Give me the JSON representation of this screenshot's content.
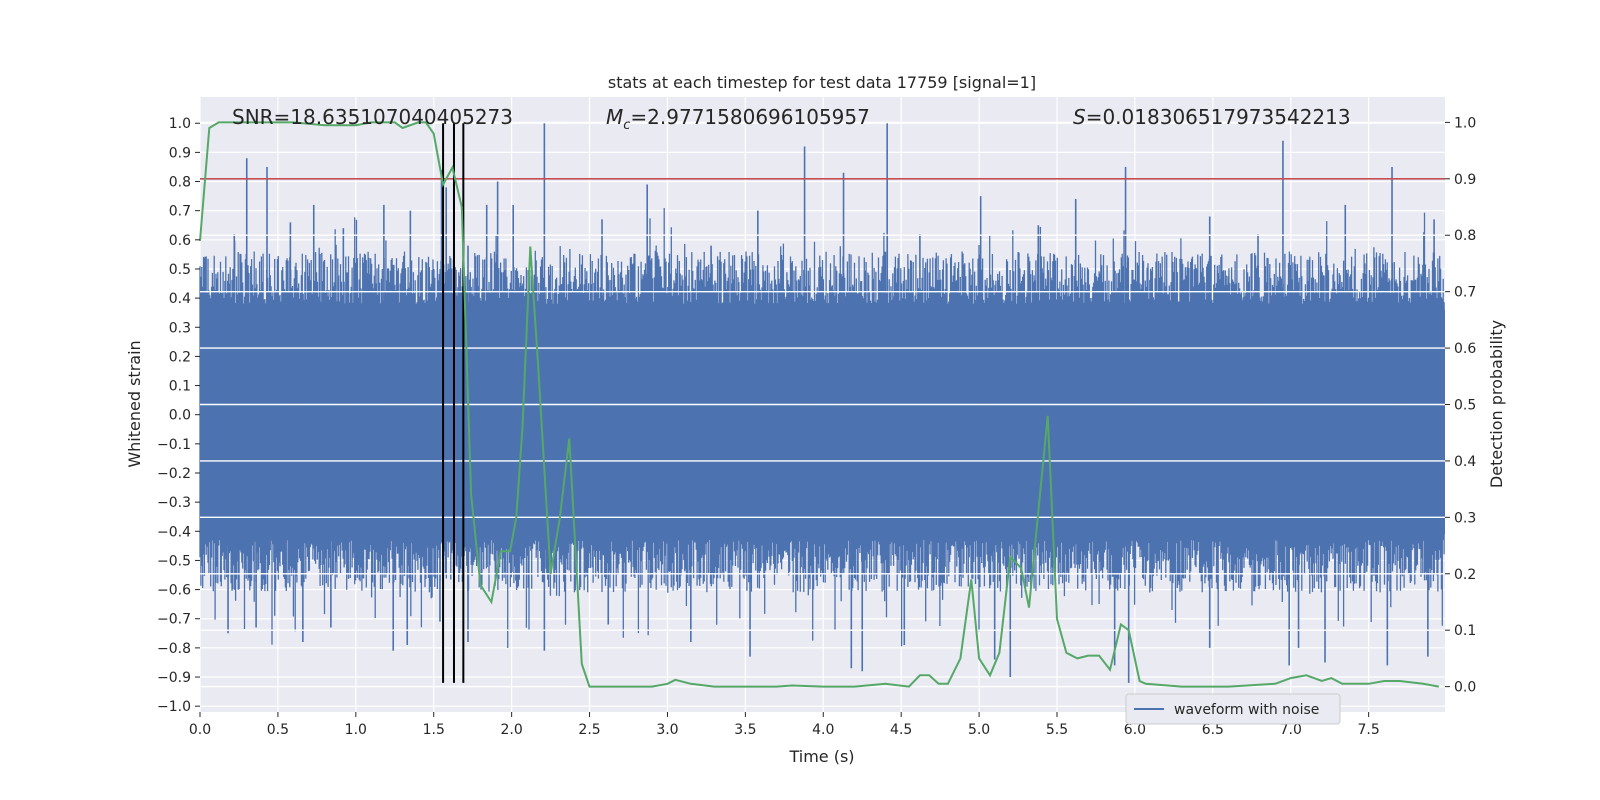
{
  "chart_data": {
    "type": "line",
    "title": "stats at each timestep for test data 17759 [signal=1]",
    "xlabel": "Time (s)",
    "ylabel_left": "Whitened strain",
    "ylabel_right": "Detection probability",
    "xlim": [
      0,
      7.99
    ],
    "ylim_left": [
      -1.02,
      1.09
    ],
    "ylim_right": [
      -0.045,
      1.045
    ],
    "grid": true,
    "x_ticks": [
      "0.0",
      "0.5",
      "1.0",
      "1.5",
      "2.0",
      "2.5",
      "3.0",
      "3.5",
      "4.0",
      "4.5",
      "5.0",
      "5.5",
      "6.0",
      "6.5",
      "7.0",
      "7.5"
    ],
    "y_ticks_left": [
      "-1.0",
      "-0.9",
      "-0.8",
      "-0.7",
      "-0.6",
      "-0.5",
      "-0.4",
      "-0.3",
      "-0.2",
      "-0.1",
      "0.0",
      "0.1",
      "0.2",
      "0.3",
      "0.4",
      "0.5",
      "0.6",
      "0.7",
      "0.8",
      "0.9",
      "1.0"
    ],
    "y_ticks_right": [
      "0.0",
      "0.1",
      "0.2",
      "0.3",
      "0.4",
      "0.5",
      "0.6",
      "0.7",
      "0.8",
      "0.9",
      "1.0"
    ],
    "annotations": {
      "snr": "SNR=18.635107040405273",
      "mc_symbol": "M",
      "mc_sub": "c",
      "mc_value": "=2.9771580696105957",
      "s_symbol": "S",
      "s_value": "=0.018306517973542213"
    },
    "legend": {
      "position": "lower-right",
      "entries": [
        "waveform with noise"
      ]
    },
    "threshold_right": 0.9,
    "vertical_markers": [
      1.56,
      1.63,
      1.69
    ],
    "marker_range_left": [
      -0.92,
      1.0
    ],
    "series": [
      {
        "name": "waveform with noise",
        "color": "#4c72b0",
        "envelope": {
          "base_pos": 0.38,
          "base_neg": -0.43,
          "spikes": [
            [
              0.22,
              0.62
            ],
            [
              0.3,
              0.88
            ],
            [
              0.43,
              0.85
            ],
            [
              0.58,
              0.66
            ],
            [
              0.73,
              0.72
            ],
            [
              0.92,
              0.64
            ],
            [
              1.18,
              0.72
            ],
            [
              1.35,
              0.7
            ],
            [
              1.55,
              0.84
            ],
            [
              1.58,
              0.78
            ],
            [
              1.72,
              0.58
            ],
            [
              1.84,
              0.72
            ],
            [
              1.91,
              0.8
            ],
            [
              2.01,
              0.72
            ],
            [
              2.21,
              1.0
            ],
            [
              2.58,
              0.67
            ],
            [
              2.87,
              0.79
            ],
            [
              3.28,
              0.58
            ],
            [
              3.58,
              0.7
            ],
            [
              3.88,
              0.92
            ],
            [
              4.13,
              0.83
            ],
            [
              4.41,
              1.0
            ],
            [
              4.62,
              0.62
            ],
            [
              5.01,
              0.75
            ],
            [
              5.38,
              0.65
            ],
            [
              5.62,
              0.74
            ],
            [
              5.94,
              0.85
            ],
            [
              6.48,
              0.68
            ],
            [
              6.79,
              0.62
            ],
            [
              6.95,
              0.94
            ],
            [
              7.35,
              0.72
            ],
            [
              7.65,
              0.85
            ],
            [
              7.92,
              0.67
            ],
            [
              0.18,
              -0.75
            ],
            [
              0.36,
              -0.73
            ],
            [
              0.66,
              -0.78
            ],
            [
              0.84,
              -0.73
            ],
            [
              1.24,
              -0.81
            ],
            [
              1.33,
              -0.79
            ],
            [
              1.54,
              -0.71
            ],
            [
              1.72,
              -0.78
            ],
            [
              2.21,
              -0.81
            ],
            [
              2.62,
              -0.72
            ],
            [
              3.15,
              -0.78
            ],
            [
              3.53,
              -0.83
            ],
            [
              4.18,
              -0.87
            ],
            [
              4.25,
              -0.88
            ],
            [
              4.52,
              -0.79
            ],
            [
              5.1,
              -0.84
            ],
            [
              5.2,
              -0.9
            ],
            [
              5.87,
              -0.86
            ],
            [
              5.96,
              -0.92
            ],
            [
              6.48,
              -0.8
            ],
            [
              6.99,
              -0.86
            ],
            [
              7.05,
              -0.8
            ],
            [
              7.22,
              -0.85
            ],
            [
              7.62,
              -0.86
            ],
            [
              7.88,
              -0.83
            ]
          ]
        }
      },
      {
        "name": "detection probability",
        "color": "#55a868",
        "axis": "right",
        "x": [
          0.0,
          0.06,
          0.12,
          0.2,
          0.3,
          0.4,
          0.5,
          0.6,
          0.8,
          1.0,
          1.1,
          1.2,
          1.25,
          1.3,
          1.4,
          1.45,
          1.5,
          1.56,
          1.62,
          1.68,
          1.74,
          1.8,
          1.87,
          1.93,
          1.99,
          2.03,
          2.07,
          2.12,
          2.17,
          2.25,
          2.31,
          2.37,
          2.45,
          2.5,
          2.6,
          2.9,
          3.0,
          3.05,
          3.15,
          3.3,
          3.5,
          3.7,
          3.8,
          4.0,
          4.2,
          4.4,
          4.55,
          4.62,
          4.68,
          4.74,
          4.8,
          4.88,
          4.95,
          5.0,
          5.07,
          5.13,
          5.2,
          5.27,
          5.32,
          5.38,
          5.44,
          5.5,
          5.56,
          5.63,
          5.7,
          5.77,
          5.84,
          5.91,
          5.96,
          6.03,
          6.07,
          6.3,
          6.6,
          6.9,
          7.0,
          7.1,
          7.2,
          7.26,
          7.33,
          7.5,
          7.6,
          7.7,
          7.85,
          7.95
        ],
        "values": [
          0.79,
          0.99,
          1.0,
          1.0,
          1.0,
          1.0,
          1.0,
          1.0,
          0.995,
          0.995,
          1.0,
          1.0,
          1.0,
          0.99,
          1.0,
          1.0,
          0.98,
          0.89,
          0.92,
          0.85,
          0.34,
          0.18,
          0.15,
          0.24,
          0.24,
          0.3,
          0.46,
          0.78,
          0.57,
          0.2,
          0.3,
          0.44,
          0.04,
          0.0,
          0.0,
          0.0,
          0.005,
          0.012,
          0.005,
          0.0,
          0.0,
          0.0,
          0.002,
          0.0,
          0.0,
          0.005,
          0.0,
          0.02,
          0.02,
          0.005,
          0.005,
          0.05,
          0.19,
          0.05,
          0.02,
          0.06,
          0.23,
          0.21,
          0.14,
          0.31,
          0.48,
          0.12,
          0.06,
          0.05,
          0.055,
          0.055,
          0.03,
          0.11,
          0.1,
          0.01,
          0.005,
          0.0,
          0.0,
          0.005,
          0.015,
          0.02,
          0.01,
          0.015,
          0.005,
          0.005,
          0.01,
          0.01,
          0.005,
          0.0
        ]
      }
    ]
  }
}
